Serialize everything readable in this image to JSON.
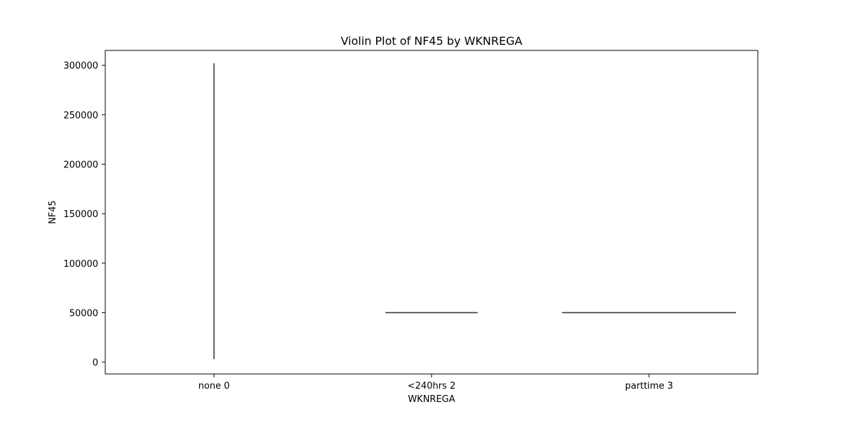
{
  "chart_data": {
    "type": "violin",
    "title": "Violin Plot of NF45 by WKNREGA",
    "xlabel": "WKNREGA",
    "ylabel": "NF45",
    "categories": [
      "none 0",
      "<240hrs 2",
      "parttime 3"
    ],
    "ylim": [
      -12000,
      315000
    ],
    "yticks": [
      0,
      50000,
      100000,
      150000,
      200000,
      250000,
      300000
    ],
    "ytick_labels": [
      "0",
      "50000",
      "100000",
      "150000",
      "200000",
      "250000",
      "300000"
    ],
    "grid": false,
    "violins": [
      {
        "category": "none 0",
        "shape": "vertical-line",
        "y_min": 3000,
        "y_max": 302000
      },
      {
        "category": "<240hrs 2",
        "shape": "horizontal-line",
        "y": 50000,
        "relative_width": 0.53
      },
      {
        "category": "parttime 3",
        "shape": "horizontal-line",
        "y": 50000,
        "relative_width": 1.0
      }
    ],
    "colors": {
      "line": "#3a3a3a",
      "axes": "#000000",
      "background": "#ffffff"
    }
  }
}
